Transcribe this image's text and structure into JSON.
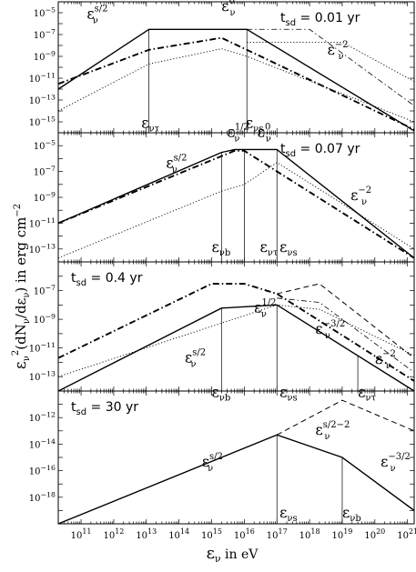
{
  "chart_data": [
    {
      "type": "line",
      "xlabel": "εν in eV",
      "ylabel": "εν2(dNν/dεν) in erg cm−2",
      "x_scale": "log",
      "y_scale": "log",
      "xlim": [
        20000000000.0,
        1.6e+21
      ],
      "x_tick_labels": [
        "10^11",
        "10^12",
        "10^13",
        "10^14",
        "10^15",
        "10^16",
        "10^17",
        "10^18",
        "10^19",
        "10^20",
        "10^21"
      ],
      "panels": [
        {
          "tsd_label": "tsd = 0.01 yr",
          "ylim": [
            1e-16,
            0.0001
          ],
          "y_tick_labels": [
            "10^-5",
            "10^-7",
            "10^-9",
            "10^-11",
            "10^-13",
            "10^-15"
          ],
          "series": [
            {
              "style": "solid",
              "points": [
                [
                  20000000000.0,
                  1e-12
                ],
                [
                  12000000000000.0,
                  3e-07
                ],
                [
                  1.2e+16,
                  3e-07
                ],
                [
                  1.6e+21,
                  1.5e-16
                ]
              ]
            },
            {
              "style": "dashdot-thick",
              "points": [
                [
                  20000000000.0,
                  3e-12
                ],
                [
                  12000000000000.0,
                  4e-09
                ],
                [
                  2000000000000000.0,
                  5e-08
                ],
                [
                  1.2e+16,
                  4e-09
                ],
                [
                  1.6e+21,
                  2e-16
                ]
              ]
            },
            {
              "style": "dashdot-thin",
              "points": [
                [
                  1.2e+16,
                  3e-07
                ],
                [
                  1e+18,
                  3e-07
                ],
                [
                  1.6e+21,
                  3e-14
                ]
              ]
            },
            {
              "style": "dotted",
              "points": [
                [
                  20000000000.0,
                  1e-14
                ],
                [
                  12000000000000.0,
                  2e-10
                ],
                [
                  2000000000000000.0,
                  5e-09
                ],
                [
                  1.2e+16,
                  1e-09
                ],
                [
                  1.6e+21,
                  1e-15
                ]
              ]
            },
            {
              "style": "dotted",
              "points": [
                [
                  1.2e+16,
                  2e-08
                ],
                [
                  1e+19,
                  2e-08
                ],
                [
                  1.6e+21,
                  5e-12
                ]
              ]
            }
          ],
          "vlines": [
            12000000000000.0,
            1.2e+16
          ],
          "annotations": [
            {
              "base": "ε",
              "sub": "ν",
              "sup": "s/2",
              "x": 150000000000.0,
              "y": 3e-06
            },
            {
              "base": "ε",
              "sub": "ν",
              "sup": "0",
              "x": 2000000000000000.0,
              "y": 1.5e-05
            },
            {
              "base": "ε",
              "sub": "ν",
              "sup": "−2",
              "x": 3.5e+18,
              "y": 1.5e-09
            },
            {
              "base": "ε",
              "sub": "ντ",
              "sup": "",
              "x": 7000000000000.0,
              "y": 3e-16
            },
            {
              "base": "ε",
              "sub": "νs",
              "sup": "",
              "x": 1.1e+16,
              "y": 3e-16
            }
          ]
        },
        {
          "tsd_label": "tsd = 0.07 yr",
          "ylim": [
            1e-14,
            0.0001
          ],
          "y_tick_labels": [
            "10^-5",
            "10^-7",
            "10^-9",
            "10^-11",
            "10^-13"
          ],
          "series": [
            {
              "style": "solid",
              "points": [
                [
                  20000000000.0,
                  1e-11
                ],
                [
                  2000000000000000.0,
                  3e-06
                ],
                [
                  5000000000000000.0,
                  5e-06
                ],
                [
                  1e+17,
                  5e-06
                ],
                [
                  1.6e+21,
                  2e-14
                ]
              ]
            },
            {
              "style": "dashdot-thick",
              "points": [
                [
                  20000000000.0,
                  1e-11
                ],
                [
                  5000000000000000.0,
                  4e-06
                ],
                [
                  1e+16,
                  4e-06
                ],
                [
                  1.6e+21,
                  2e-14
                ]
              ]
            },
            {
              "style": "dotted",
              "points": [
                [
                  20000000000.0,
                  2e-14
                ],
                [
                  2000000000000000.0,
                  3e-09
                ],
                [
                  1e+16,
                  1e-08
                ],
                [
                  1e+17,
                  5e-07
                ],
                [
                  1.6e+21,
                  1e-13
                ]
              ]
            }
          ],
          "vlines": [
            2000000000000000.0,
            1e+16,
            1e+17
          ],
          "annotations": [
            {
              "base": "ε",
              "sub": "ν",
              "sup": "s/2",
              "x": 40000000000000.0,
              "y": 2e-07
            },
            {
              "base": "ε",
              "sub": "ν",
              "sup": "1/2",
              "x": 3000000000000000.0,
              "y": 5e-05
            },
            {
              "base": "ε",
              "sub": "ν",
              "sup": "0",
              "x": 2.5e+16,
              "y": 5e-05
            },
            {
              "base": "ε",
              "sub": "ν",
              "sup": "−2",
              "x": 1.8e+19,
              "y": 6e-10
            },
            {
              "base": "ε",
              "sub": "νb",
              "sup": "",
              "x": 1000000000000000.0,
              "y": 6e-14
            },
            {
              "base": "ε",
              "sub": "ντ",
              "sup": "",
              "x": 3e+16,
              "y": 6e-14
            },
            {
              "base": "ε",
              "sub": "νs",
              "sup": "",
              "x": 1.2e+17,
              "y": 6e-14
            }
          ]
        },
        {
          "tsd_label": "tsd = 0.4 yr",
          "ylim": [
            1e-14,
            1e-05
          ],
          "y_tick_labels": [
            "10^-7",
            "10^-9",
            "10^-11",
            "10^-13"
          ],
          "series": [
            {
              "style": "solid",
              "points": [
                [
                  20000000000.0,
                  1e-14
                ],
                [
                  2000000000000000.0,
                  6e-09
                ],
                [
                  1e+17,
                  1e-08
                ],
                [
                  1.6e+21,
                  1e-14
                ]
              ]
            },
            {
              "style": "dashdot-thick",
              "points": [
                [
                  20000000000.0,
                  2e-12
                ],
                [
                  1000000000000000.0,
                  3e-07
                ],
                [
                  1e+16,
                  3e-07
                ],
                [
                  1e+17,
                  6e-08
                ],
                [
                  1.6e+21,
                  5e-14
                ]
              ]
            },
            {
              "style": "dashed",
              "points": [
                [
                  1e+17,
                  6e-08
                ],
                [
                  2e+18,
                  3e-07
                ],
                [
                  1.6e+21,
                  2e-12
                ]
              ]
            },
            {
              "style": "dotted",
              "points": [
                [
                  20000000000.0,
                  1e-13
                ],
                [
                  1e+17,
                  1e-08
                ],
                [
                  2e+18,
                  5e-09
                ],
                [
                  1.6e+21,
                  3e-12
                ]
              ]
            },
            {
              "style": "dashdot-thin",
              "points": [
                [
                  1e+17,
                  3e-08
                ],
                [
                  2e+18,
                  1.5e-08
                ],
                [
                  1.6e+21,
                  2e-13
                ]
              ]
            }
          ],
          "vlines": [
            2000000000000000.0,
            1e+17,
            3e+19
          ],
          "annotations": [
            {
              "base": "ε",
              "sub": "ν",
              "sup": "s/2",
              "x": 150000000000000.0,
              "y": 1e-12
            },
            {
              "base": "ε",
              "sub": "ν",
              "sup": "1/2",
              "x": 2e+16,
              "y": 3e-09
            },
            {
              "base": "ε",
              "sub": "ν",
              "sup": "−3/2",
              "x": 1.5e+18,
              "y": 1e-10
            },
            {
              "base": "ε",
              "sub": "ν",
              "sup": "−2",
              "x": 1e+20,
              "y": 8e-13
            },
            {
              "base": "ε",
              "sub": "νb",
              "sup": "",
              "x": 1000000000000000.0,
              "y": 4e-15
            },
            {
              "base": "ε",
              "sub": "νs",
              "sup": "",
              "x": 1.2e+17,
              "y": 4e-15
            },
            {
              "base": "ε",
              "sub": "ντ",
              "sup": "",
              "x": 3e+19,
              "y": 4e-15
            }
          ]
        },
        {
          "tsd_label": "tsd = 30 yr",
          "ylim": [
            1e-20,
            1e-10
          ],
          "y_tick_labels": [
            "10^-10",
            "10^-12",
            "10^-14",
            "10^-16",
            "10^-18"
          ],
          "series": [
            {
              "style": "solid",
              "points": [
                [
                  20000000000.0,
                  1e-20
                ],
                [
                  1e+17,
                  5e-14
                ],
                [
                  1e+19,
                  1e-15
                ],
                [
                  1.6e+21,
                  1e-19
                ]
              ]
            },
            {
              "style": "dashed",
              "points": [
                [
                  1e+17,
                  5e-14
                ],
                [
                  1e+19,
                  2e-11
                ],
                [
                  1.6e+21,
                  1e-13
                ]
              ]
            }
          ],
          "vlines": [
            1e+17,
            1e+19
          ],
          "annotations": [
            {
              "base": "ε",
              "sub": "ν",
              "sup": "s/2",
              "x": 500000000000000.0,
              "y": 2e-16
            },
            {
              "base": "ε",
              "sub": "ν",
              "sup": "s/2−2",
              "x": 1.5e+18,
              "y": 5e-14
            },
            {
              "base": "ε",
              "sub": "ν",
              "sup": "−3/2",
              "x": 1.5e+20,
              "y": 2e-16
            },
            {
              "base": "ε",
              "sub": "νs",
              "sup": "",
              "x": 1.2e+17,
              "y": 3e-20
            },
            {
              "base": "ε",
              "sub": "νb",
              "sup": "",
              "x": 1e+19,
              "y": 3e-20
            }
          ]
        }
      ]
    }
  ]
}
